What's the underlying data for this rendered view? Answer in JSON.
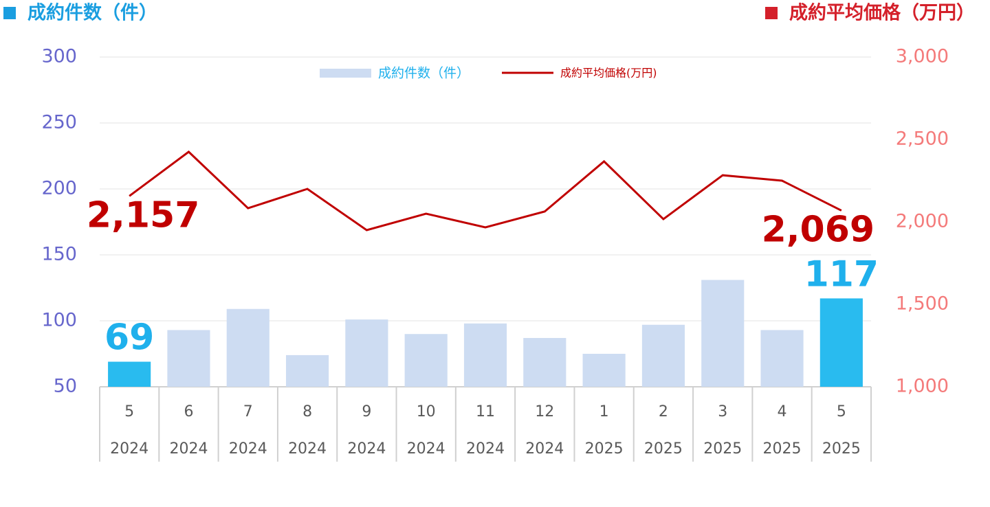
{
  "chart_data": {
    "type": "bar-line",
    "y_label": "成約件数（件）",
    "y2_label": "成約平均価格（万円）",
    "categories": [
      "5",
      "6",
      "7",
      "8",
      "9",
      "10",
      "11",
      "12",
      "1",
      "2",
      "3",
      "4",
      "5"
    ],
    "years": [
      "2024",
      "2024",
      "2024",
      "2024",
      "2024",
      "2024",
      "2024",
      "2024",
      "2025",
      "2025",
      "2025",
      "2025",
      "2025"
    ],
    "series": [
      {
        "name": "成約件数（件）",
        "type": "bar",
        "color": "#cddcf2",
        "colors": [
          "#29bbef",
          "#cddcf2",
          "#cddcf2",
          "#cddcf2",
          "#cddcf2",
          "#cddcf2",
          "#cddcf2",
          "#cddcf2",
          "#cddcf2",
          "#cddcf2",
          "#cddcf2",
          "#cddcf2",
          "#29bbef"
        ],
        "label_color": "#1fb0ec",
        "values": [
          69,
          93,
          109,
          74,
          101,
          90,
          98,
          87,
          75,
          97,
          131,
          93,
          117
        ],
        "value_labels": [
          "69",
          null,
          null,
          null,
          null,
          null,
          null,
          null,
          null,
          null,
          null,
          null,
          "117"
        ]
      },
      {
        "name": "成約平均価格(万円)",
        "type": "line",
        "axis": "y2",
        "color": "#c00000",
        "values": [
          2157,
          2425,
          2083,
          2200,
          1950,
          2050,
          1967,
          2063,
          2367,
          2017,
          2283,
          2250,
          2069
        ],
        "value_labels": [
          "2,157",
          null,
          null,
          null,
          null,
          null,
          null,
          null,
          null,
          null,
          null,
          null,
          "2,069"
        ]
      }
    ],
    "ylim": [
      50,
      300
    ],
    "yticks": [
      50,
      100,
      150,
      200,
      250,
      300
    ],
    "y2lim": [
      1000,
      3000
    ],
    "y2ticks": [
      {
        "value": 1000,
        "label": "1,000"
      },
      {
        "value": 1500,
        "label": "1,500"
      },
      {
        "value": 2000,
        "label": "2,000"
      },
      {
        "value": 2500,
        "label": "2,500"
      },
      {
        "value": 3000,
        "label": "3,000"
      }
    ],
    "grid": true,
    "legend": "top"
  }
}
